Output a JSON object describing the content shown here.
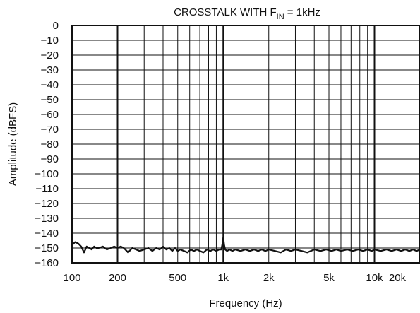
{
  "chart_data": {
    "type": "line",
    "title_main": "CROSSTALK WITH F",
    "title_sub": "IN",
    "title_tail": " = 1kHz",
    "xlabel": "Frequency (Hz)",
    "ylabel": "Amplitude (dBFS)",
    "x_scale": "log",
    "xlim": [
      100,
      20000
    ],
    "ylim": [
      -160,
      0
    ],
    "grid": true,
    "x_ticks": [
      {
        "value": 100,
        "label": "100"
      },
      {
        "value": 200,
        "label": "200"
      },
      {
        "value": 500,
        "label": "500"
      },
      {
        "value": 1000,
        "label": "1k"
      },
      {
        "value": 2000,
        "label": "2k"
      },
      {
        "value": 5000,
        "label": "5k"
      },
      {
        "value": 10000,
        "label": "10k"
      },
      {
        "value": 20000,
        "label": "20k"
      }
    ],
    "y_ticks": [
      {
        "value": 0,
        "label": "0"
      },
      {
        "value": -10,
        "label": "−10"
      },
      {
        "value": -20,
        "label": "−20"
      },
      {
        "value": -30,
        "label": "−30"
      },
      {
        "value": -40,
        "label": "−40"
      },
      {
        "value": -50,
        "label": "−50"
      },
      {
        "value": -60,
        "label": "−60"
      },
      {
        "value": -70,
        "label": "−70"
      },
      {
        "value": -80,
        "label": "−80"
      },
      {
        "value": -90,
        "label": "−90"
      },
      {
        "value": -100,
        "label": "−100"
      },
      {
        "value": -110,
        "label": "−110"
      },
      {
        "value": -120,
        "label": "−120"
      },
      {
        "value": -130,
        "label": "−130"
      },
      {
        "value": -140,
        "label": "−140"
      },
      {
        "value": -150,
        "label": "−150"
      },
      {
        "value": -160,
        "label": "−160"
      }
    ],
    "series": [
      {
        "color": "#111111",
        "x": [
          100,
          105,
          110,
          115,
          120,
          125,
          130,
          135,
          140,
          145,
          150,
          160,
          170,
          180,
          190,
          200,
          210,
          220,
          235,
          250,
          265,
          280,
          300,
          320,
          340,
          360,
          380,
          400,
          420,
          440,
          460,
          480,
          500,
          520,
          550,
          580,
          610,
          640,
          670,
          700,
          740,
          780,
          820,
          860,
          900,
          940,
          970,
          985,
          1000,
          1015,
          1030,
          1060,
          1100,
          1150,
          1200,
          1300,
          1400,
          1500,
          1600,
          1700,
          1800,
          1900,
          2000,
          2200,
          2400,
          2600,
          2800,
          3000,
          3300,
          3600,
          4000,
          4400,
          4800,
          5200,
          5600,
          6000,
          6600,
          7200,
          7800,
          8400,
          9000,
          9600,
          10000,
          11000,
          12000,
          13000,
          14000,
          15000,
          16000,
          17000,
          18000,
          19000,
          20000
        ],
        "y": [
          -148,
          -146,
          -147,
          -149,
          -153,
          -149,
          -150,
          -151,
          -149,
          -150,
          -150,
          -149,
          -151,
          -150,
          -149,
          -150,
          -149,
          -150,
          -153,
          -150,
          -151,
          -152,
          -151,
          -150,
          -152,
          -150,
          -151,
          -149,
          -151,
          -150,
          -152,
          -150,
          -152,
          -151,
          -152,
          -153,
          -151,
          -152,
          -151,
          -152,
          -153,
          -151,
          -152,
          -151,
          -152,
          -151,
          -151,
          -148,
          -143,
          -148,
          -151,
          -152,
          -151,
          -152,
          -151,
          -152,
          -151,
          -152,
          -151,
          -152,
          -151,
          -152,
          -151,
          -152,
          -153,
          -151,
          -152,
          -151,
          -152,
          -153,
          -151,
          -152,
          -151,
          -152,
          -151,
          -152,
          -151,
          -152,
          -151,
          -152,
          -151,
          -152,
          -151,
          -152,
          -151,
          -152,
          -151,
          -152,
          -151,
          -152,
          -151,
          -152,
          -151
        ]
      }
    ]
  }
}
